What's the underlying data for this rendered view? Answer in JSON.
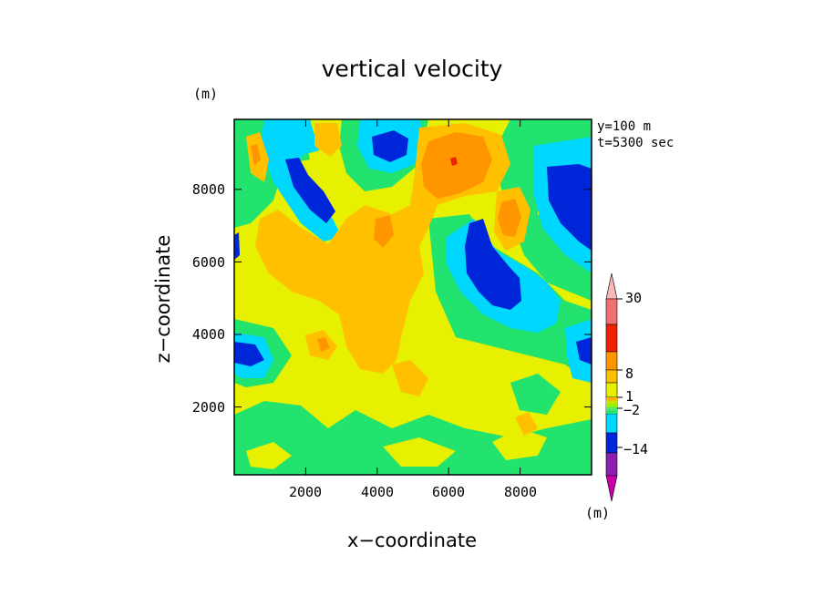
{
  "chart_data": {
    "type": "heatmap",
    "title": "vertical velocity",
    "xlabel": "x−coordinate",
    "ylabel": "z−coordinate",
    "x_unit": "(m)",
    "z_unit": "(m)",
    "xlim": [
      0,
      10000
    ],
    "zlim": [
      100,
      9900
    ],
    "x_ticks": [
      "2000",
      "4000",
      "6000",
      "8000"
    ],
    "z_ticks": [
      "2000",
      "4000",
      "6000",
      "8000"
    ],
    "annotations": [
      "y=100 m",
      "t=5300 sec"
    ],
    "colorbar": {
      "unit": "(m)",
      "tick_labels": [
        "30",
        "8",
        "1",
        "−2",
        "−14"
      ],
      "levels": [
        {
          "color": "#cc00aa"
        },
        {
          "color": "#8a1fb0"
        },
        {
          "color": "#0026d9"
        },
        {
          "color": "#00d7ff"
        },
        {
          "color": "#22e36e"
        },
        {
          "color": "#e6f000"
        },
        {
          "color": "#ffc000"
        },
        {
          "color": "#ff9600"
        },
        {
          "color": "#ee2200"
        },
        {
          "color": "#f07070"
        },
        {
          "color": "#f7b8b8"
        }
      ]
    }
  }
}
